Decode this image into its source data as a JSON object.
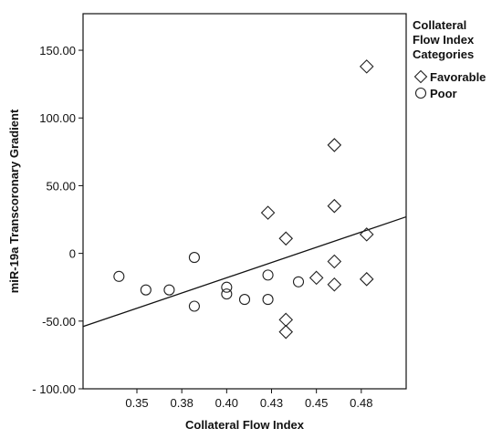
{
  "chart_data": {
    "type": "scatter",
    "xlabel": "Collateral Flow Index",
    "ylabel": "miR-19a Transcoronary Gradient",
    "xlim": [
      0.32,
      0.5
    ],
    "ylim": [
      -100,
      177
    ],
    "x_ticks": [
      0.35,
      0.375,
      0.4,
      0.425,
      0.45,
      0.475
    ],
    "x_tick_labels": [
      "0.35",
      "0.38",
      "0.40",
      "0.43",
      "0.45",
      "0.48"
    ],
    "y_ticks": [
      150,
      100,
      50,
      0,
      -50,
      -100
    ],
    "y_tick_labels": [
      "150.00",
      "100.00",
      "50.00",
      "0",
      "-50.00",
      "- 100.00"
    ],
    "grid": false,
    "legend": {
      "placement": "right",
      "title_lines": [
        "Collateral",
        "Flow Index",
        "Categories"
      ]
    },
    "series": [
      {
        "name": "Favorable",
        "marker": "diamond",
        "points": [
          [
            0.478,
            138
          ],
          [
            0.46,
            80
          ],
          [
            0.46,
            35
          ],
          [
            0.423,
            30
          ],
          [
            0.433,
            11
          ],
          [
            0.478,
            14
          ],
          [
            0.46,
            -6
          ],
          [
            0.45,
            -18
          ],
          [
            0.478,
            -19
          ],
          [
            0.46,
            -23
          ],
          [
            0.433,
            -49
          ],
          [
            0.433,
            -58
          ]
        ]
      },
      {
        "name": "Poor",
        "marker": "circle",
        "points": [
          [
            0.34,
            -17
          ],
          [
            0.355,
            -27
          ],
          [
            0.368,
            -27
          ],
          [
            0.382,
            -3
          ],
          [
            0.382,
            -39
          ],
          [
            0.4,
            -25
          ],
          [
            0.4,
            -30
          ],
          [
            0.41,
            -34
          ],
          [
            0.423,
            -16
          ],
          [
            0.423,
            -34
          ],
          [
            0.44,
            -21
          ]
        ]
      }
    ],
    "fit_line": {
      "x": [
        0.32,
        0.5
      ],
      "y": [
        -54,
        27
      ]
    }
  }
}
